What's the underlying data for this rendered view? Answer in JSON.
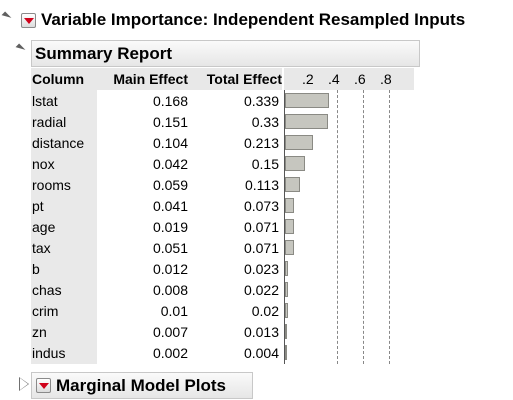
{
  "title": "Variable Importance: Independent Resampled Inputs",
  "summary": {
    "title": "Summary Report",
    "headers": {
      "column": "Column",
      "main": "Main Effect",
      "total": "Total Effect"
    },
    "chart_ticks": [
      ".2",
      ".4",
      ".6",
      ".8"
    ],
    "rows": [
      {
        "column": "lstat",
        "main": "0.168",
        "total": "0.339"
      },
      {
        "column": "radial",
        "main": "0.151",
        "total": "0.33"
      },
      {
        "column": "distance",
        "main": "0.104",
        "total": "0.213"
      },
      {
        "column": "nox",
        "main": "0.042",
        "total": "0.15"
      },
      {
        "column": "rooms",
        "main": "0.059",
        "total": "0.113"
      },
      {
        "column": "pt",
        "main": "0.041",
        "total": "0.073"
      },
      {
        "column": "age",
        "main": "0.019",
        "total": "0.071"
      },
      {
        "column": "tax",
        "main": "0.051",
        "total": "0.071"
      },
      {
        "column": "b",
        "main": "0.012",
        "total": "0.023"
      },
      {
        "column": "chas",
        "main": "0.008",
        "total": "0.022"
      },
      {
        "column": "crim",
        "main": "0.01",
        "total": "0.02"
      },
      {
        "column": "zn",
        "main": "0.007",
        "total": "0.013"
      },
      {
        "column": "indus",
        "main": "0.002",
        "total": "0.004"
      }
    ]
  },
  "marginal": {
    "title": "Marginal Model Plots"
  },
  "chart_data": {
    "type": "bar",
    "orientation": "horizontal",
    "categories": [
      "lstat",
      "radial",
      "distance",
      "nox",
      "rooms",
      "pt",
      "age",
      "tax",
      "b",
      "chas",
      "crim",
      "zn",
      "indus"
    ],
    "values": [
      0.339,
      0.33,
      0.213,
      0.15,
      0.113,
      0.073,
      0.071,
      0.071,
      0.023,
      0.022,
      0.02,
      0.013,
      0.004
    ],
    "xlim": [
      0,
      1
    ],
    "ticks": [
      0.2,
      0.4,
      0.6,
      0.8
    ],
    "grid": "dashed vertical"
  }
}
